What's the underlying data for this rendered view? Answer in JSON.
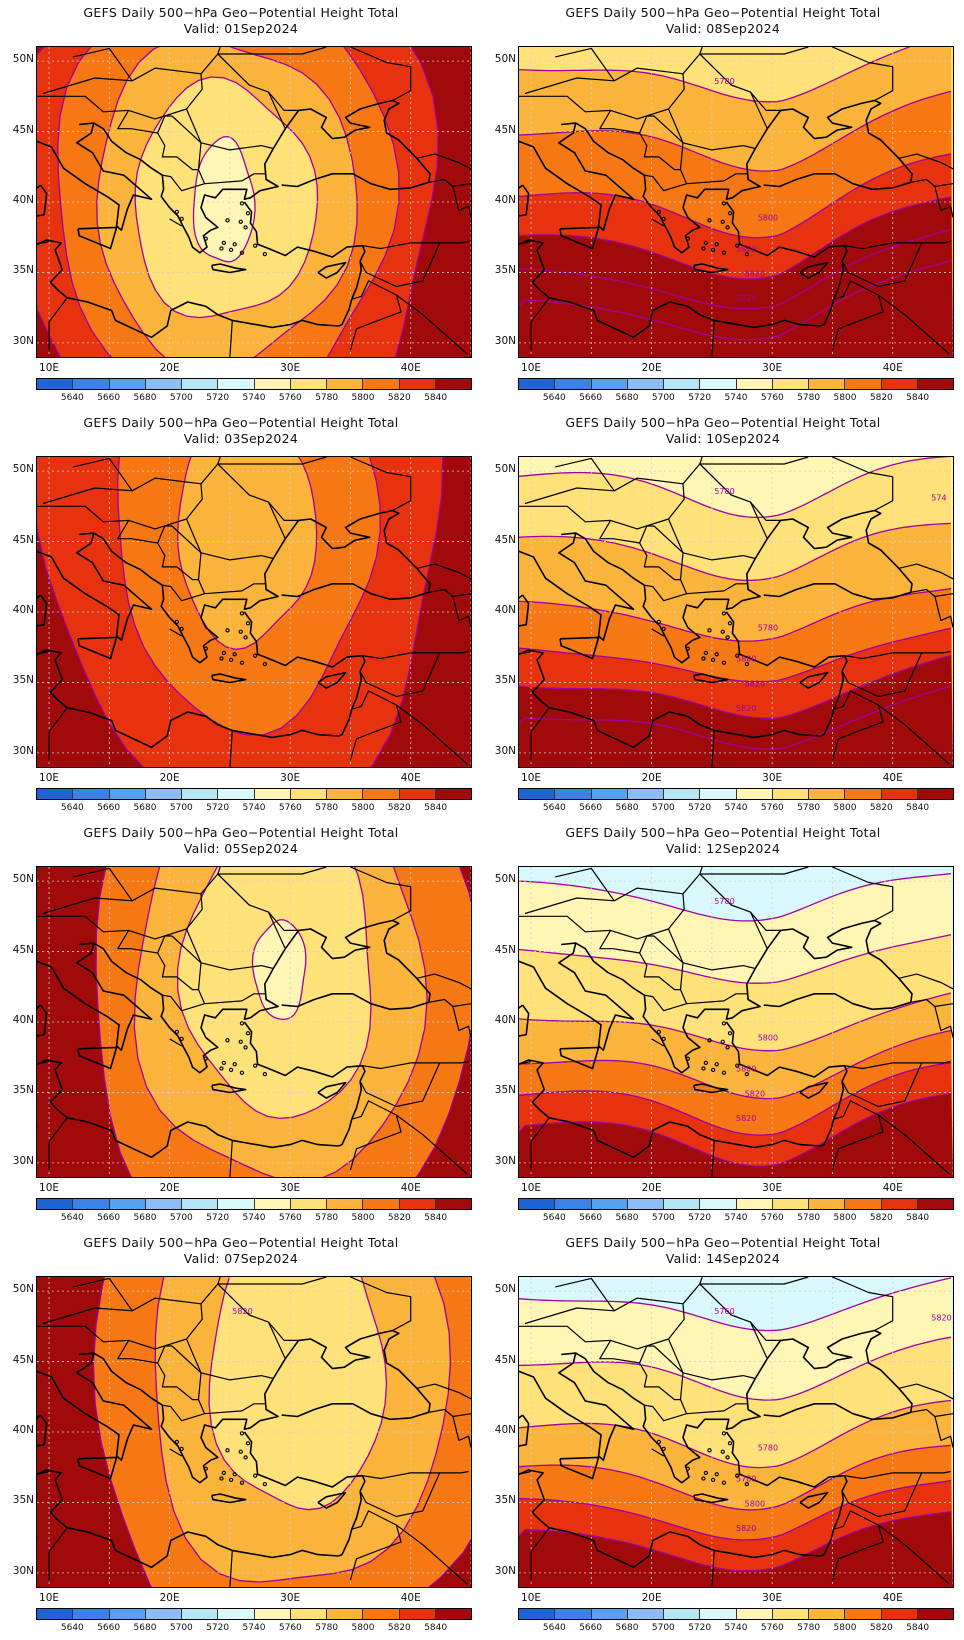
{
  "panels": [
    {
      "title": "GEFS Daily 500−hPa Geo−Potential Height Total",
      "valid": "Valid: 01Sep2024",
      "pattern": "low",
      "center": [
        0.43,
        0.5
      ],
      "radii": [
        [
          0.07,
          0.2
        ],
        [
          0.21,
          0.38
        ],
        [
          0.3,
          0.53
        ],
        [
          0.39,
          0.69
        ],
        [
          0.5,
          0.85
        ]
      ],
      "fills": [
        5760,
        5780,
        5800,
        5820,
        5840
      ],
      "background": 5840,
      "contour_labels": []
    },
    {
      "title": "GEFS Daily 500−hPa Geo−Potential Height Total",
      "valid": "Valid: 08Sep2024",
      "pattern": "bands",
      "base": 5780,
      "contour_labels": [
        "5780",
        "5800",
        "5800",
        "5820",
        "5820"
      ]
    },
    {
      "title": "GEFS Daily 500−hPa Geo−Potential Height Total",
      "valid": "Valid: 03Sep2024",
      "pattern": "low",
      "center": [
        0.48,
        0.24
      ],
      "radii": [
        [
          0.16,
          0.36
        ],
        [
          0.3,
          0.62
        ],
        [
          0.46,
          0.9
        ]
      ],
      "fills": [
        5800,
        5820,
        5840
      ],
      "background": 5840,
      "contour_labels": []
    },
    {
      "title": "GEFS Daily 500−hPa Geo−Potential Height Total",
      "valid": "Valid: 10Sep2024",
      "pattern": "bands",
      "base": 5760,
      "contour_labels": [
        "5780",
        "5780",
        "5800",
        "5820",
        "5820",
        "574"
      ]
    },
    {
      "title": "GEFS Daily 500−hPa Geo−Potential Height Total",
      "valid": "Valid: 05Sep2024",
      "pattern": "low",
      "center": [
        0.56,
        0.33
      ],
      "radii": [
        [
          0.06,
          0.16
        ],
        [
          0.22,
          0.48
        ],
        [
          0.33,
          0.7
        ],
        [
          0.44,
          0.92
        ]
      ],
      "fills": [
        5760,
        5780,
        5800,
        5820
      ],
      "background": 5840,
      "contour_labels": []
    },
    {
      "title": "GEFS Daily 500−hPa Geo−Potential Height Total",
      "valid": "Valid: 12Sep2024",
      "pattern": "bands",
      "base": 5740,
      "contour_labels": [
        "5780",
        "5800",
        "5800",
        "5820",
        "5820"
      ]
    },
    {
      "title": "GEFS Daily 500−hPa Geo−Potential Height Total",
      "valid": "Valid: 07Sep2024",
      "pattern": "low",
      "center": [
        0.6,
        0.28
      ],
      "radii": [
        [
          0.2,
          0.48
        ],
        [
          0.34,
          0.74
        ],
        [
          0.48,
          1.0
        ]
      ],
      "fills": [
        5780,
        5800,
        5820
      ],
      "background": 5840,
      "contour_labels": [
        "5820"
      ]
    },
    {
      "title": "GEFS Daily 500−hPa Geo−Potential Height Total",
      "valid": "Valid: 14Sep2024",
      "pattern": "bands",
      "base": 5740,
      "contour_labels": [
        "5760",
        "5780",
        "5780",
        "5800",
        "5820",
        "5820"
      ]
    }
  ],
  "axes": {
    "lat_ticks": [
      "50N",
      "45N",
      "40N",
      "35N",
      "30N"
    ],
    "lon_ticks": [
      "10E",
      "20E",
      "30E",
      "40E"
    ]
  },
  "colorbar": {
    "labels": [
      "5640",
      "5660",
      "5680",
      "5700",
      "5720",
      "5740",
      "5760",
      "5780",
      "5800",
      "5820",
      "5840"
    ],
    "colors": [
      "#1e64d2",
      "#3c82e6",
      "#5aa0f0",
      "#8cbef5",
      "#b4e6f5",
      "#d8f8fc",
      "#fff5b4",
      "#ffe17a",
      "#fab43c",
      "#f57814",
      "#e6320f",
      "#a00a0a"
    ]
  },
  "fill_colors": {
    "5740": "#d8f8fc",
    "5760": "#fff5b4",
    "5780": "#ffe17a",
    "5800": "#fab43c",
    "5820": "#f57814",
    "5840": "#e6320f",
    "5860": "#a00a0a"
  },
  "contour_color": "#a000a0"
}
